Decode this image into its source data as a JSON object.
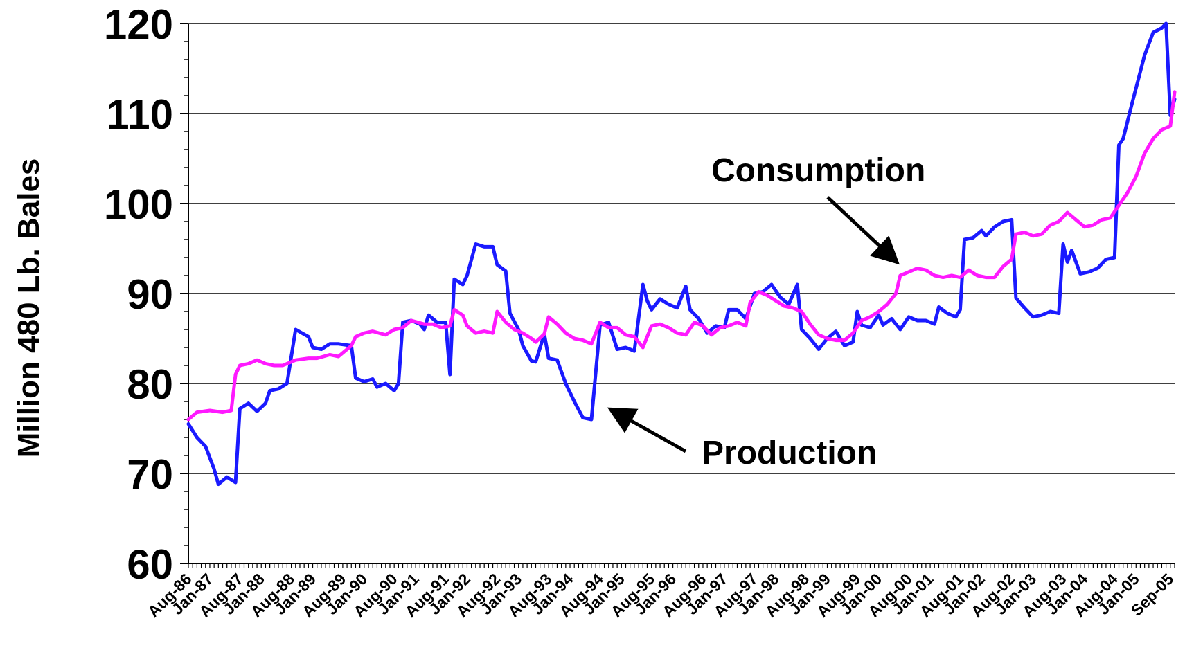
{
  "chart_data": {
    "type": "line",
    "title": "",
    "xlabel": "",
    "ylabel": "Million 480 Lb. Bales",
    "ylim": [
      60,
      120
    ],
    "yticks": [
      60,
      70,
      80,
      90,
      100,
      110,
      120
    ],
    "grid": true,
    "legend": "none",
    "x_start": "Aug-86",
    "x_end": "Sep-05",
    "x_tick_labels": [
      "Aug-86",
      "Jan-87",
      "Aug-87",
      "Jan-88",
      "Aug-88",
      "Jan-89",
      "Aug-89",
      "Jan-90",
      "Aug-90",
      "Jan-91",
      "Aug-91",
      "Jan-92",
      "Aug-92",
      "Jan-93",
      "Aug-93",
      "Jan-94",
      "Aug-94",
      "Jan-95",
      "Aug-95",
      "Jan-96",
      "Aug-96",
      "Jan-97",
      "Aug-97",
      "Jan-98",
      "Aug-98",
      "Jan-99",
      "Aug-99",
      "Jan-00",
      "Aug-00",
      "Jan-01",
      "Aug-01",
      "Jan-02",
      "Aug-02",
      "Jan-03",
      "Aug-03",
      "Jan-04",
      "Aug-04",
      "Jan-05",
      "Sep-05"
    ],
    "series": [
      {
        "name": "Production",
        "color": "#1a1aff",
        "points": [
          [
            "Aug-86",
            75.5
          ],
          [
            "Oct-86",
            74
          ],
          [
            "Dec-86",
            73
          ],
          [
            "Feb-87",
            70.5
          ],
          [
            "Mar-87",
            68.8
          ],
          [
            "May-87",
            69.6
          ],
          [
            "Jul-87",
            69
          ],
          [
            "Aug-87",
            77.2
          ],
          [
            "Oct-87",
            77.8
          ],
          [
            "Dec-87",
            76.9
          ],
          [
            "Feb-88",
            77.8
          ],
          [
            "Mar-88",
            79.2
          ],
          [
            "May-88",
            79.4
          ],
          [
            "Jul-88",
            80
          ],
          [
            "Sep-88",
            86
          ],
          [
            "Dec-88",
            85.2
          ],
          [
            "Jan-89",
            84
          ],
          [
            "Mar-89",
            83.8
          ],
          [
            "May-89",
            84.4
          ],
          [
            "Jul-89",
            84.4
          ],
          [
            "Oct-89",
            84.2
          ],
          [
            "Nov-89",
            80.6
          ],
          [
            "Jan-90",
            80.2
          ],
          [
            "Mar-90",
            80.5
          ],
          [
            "Apr-90",
            79.6
          ],
          [
            "Jun-90",
            80
          ],
          [
            "Aug-90",
            79.2
          ],
          [
            "Sep-90",
            80
          ],
          [
            "Oct-90",
            86.8
          ],
          [
            "Dec-90",
            87
          ],
          [
            "Feb-91",
            86.6
          ],
          [
            "Mar-91",
            86
          ],
          [
            "Apr-91",
            87.6
          ],
          [
            "Jun-91",
            86.8
          ],
          [
            "Aug-91",
            86.8
          ],
          [
            "Sep-91",
            81
          ],
          [
            "Oct-91",
            91.6
          ],
          [
            "Dec-91",
            91
          ],
          [
            "Jan-92",
            92
          ],
          [
            "Mar-92",
            95.5
          ],
          [
            "May-92",
            95.2
          ],
          [
            "Jul-92",
            95.2
          ],
          [
            "Aug-92",
            93.2
          ],
          [
            "Oct-92",
            92.5
          ],
          [
            "Nov-92",
            87.8
          ],
          [
            "Jan-93",
            86
          ],
          [
            "Feb-93",
            84.2
          ],
          [
            "Apr-93",
            82.5
          ],
          [
            "May-93",
            82.4
          ],
          [
            "Jul-93",
            85.5
          ],
          [
            "Aug-93",
            82.8
          ],
          [
            "Oct-93",
            82.6
          ],
          [
            "Dec-93",
            80
          ],
          [
            "Feb-94",
            78
          ],
          [
            "Apr-94",
            76.2
          ],
          [
            "Jun-94",
            76
          ],
          [
            "Aug-94",
            86.5
          ],
          [
            "Oct-94",
            86.8
          ],
          [
            "Dec-94",
            83.8
          ],
          [
            "Feb-95",
            84
          ],
          [
            "Apr-95",
            83.6
          ],
          [
            "Jun-95",
            91
          ],
          [
            "Jul-95",
            89.2
          ],
          [
            "Aug-95",
            88.2
          ],
          [
            "Oct-95",
            89.4
          ],
          [
            "Dec-95",
            88.8
          ],
          [
            "Feb-96",
            88.4
          ],
          [
            "Apr-96",
            90.8
          ],
          [
            "May-96",
            88.2
          ],
          [
            "Jul-96",
            87.2
          ],
          [
            "Sep-96",
            85.6
          ],
          [
            "Nov-96",
            86.4
          ],
          [
            "Jan-97",
            86.2
          ],
          [
            "Feb-97",
            88.2
          ],
          [
            "Apr-97",
            88.2
          ],
          [
            "Jun-97",
            87.2
          ],
          [
            "Aug-97",
            90
          ],
          [
            "Oct-97",
            90.2
          ],
          [
            "Dec-97",
            91
          ],
          [
            "Feb-98",
            89.6
          ],
          [
            "Apr-98",
            88.8
          ],
          [
            "Jun-98",
            91
          ],
          [
            "Jul-98",
            86
          ],
          [
            "Sep-98",
            85
          ],
          [
            "Nov-98",
            83.8
          ],
          [
            "Jan-99",
            85
          ],
          [
            "Mar-99",
            85.8
          ],
          [
            "May-99",
            84.2
          ],
          [
            "Jul-99",
            84.6
          ],
          [
            "Aug-99",
            88
          ],
          [
            "Sep-99",
            86.5
          ],
          [
            "Nov-99",
            86.2
          ],
          [
            "Jan-00",
            87.6
          ],
          [
            "Feb-00",
            86.5
          ],
          [
            "Apr-00",
            87.2
          ],
          [
            "Jun-00",
            86
          ],
          [
            "Aug-00",
            87.4
          ],
          [
            "Oct-00",
            87
          ],
          [
            "Dec-00",
            87
          ],
          [
            "Feb-01",
            86.6
          ],
          [
            "Mar-01",
            88.5
          ],
          [
            "May-01",
            87.8
          ],
          [
            "Jul-01",
            87.4
          ],
          [
            "Aug-01",
            88.2
          ],
          [
            "Sep-01",
            96
          ],
          [
            "Nov-01",
            96.2
          ],
          [
            "Jan-02",
            97
          ],
          [
            "Feb-02",
            96.4
          ],
          [
            "Apr-02",
            97.4
          ],
          [
            "Jun-02",
            98
          ],
          [
            "Aug-02",
            98.2
          ],
          [
            "Sep-02",
            89.5
          ],
          [
            "Nov-02",
            88.4
          ],
          [
            "Jan-03",
            87.4
          ],
          [
            "Mar-03",
            87.6
          ],
          [
            "May-03",
            88
          ],
          [
            "Jul-03",
            87.8
          ],
          [
            "Aug-03",
            95.5
          ],
          [
            "Sep-03",
            93.5
          ],
          [
            "Oct-03",
            94.8
          ],
          [
            "Dec-03",
            92.2
          ],
          [
            "Feb-04",
            92.4
          ],
          [
            "Apr-04",
            92.8
          ],
          [
            "Jun-04",
            93.8
          ],
          [
            "Aug-04",
            94
          ],
          [
            "Sep-04",
            106.5
          ],
          [
            "Oct-04",
            107.2
          ],
          [
            "Dec-04",
            111
          ],
          [
            "Mar-05",
            116.5
          ],
          [
            "May-05",
            119
          ],
          [
            "Jul-05",
            119.5
          ],
          [
            "Aug-05",
            120
          ],
          [
            "Sep-05",
            109.8
          ],
          [
            "Oct-05",
            111.6
          ]
        ]
      },
      {
        "name": "Consumption",
        "color": "#ff19ff",
        "points": [
          [
            "Aug-86",
            76
          ],
          [
            "Oct-86",
            76.8
          ],
          [
            "Jan-87",
            77
          ],
          [
            "Apr-87",
            76.8
          ],
          [
            "Jun-87",
            77
          ],
          [
            "Jul-87",
            81
          ],
          [
            "Aug-87",
            82
          ],
          [
            "Oct-87",
            82.2
          ],
          [
            "Dec-87",
            82.6
          ],
          [
            "Feb-88",
            82.2
          ],
          [
            "Apr-88",
            82
          ],
          [
            "Jun-88",
            82
          ],
          [
            "Sep-88",
            82.6
          ],
          [
            "Dec-88",
            82.8
          ],
          [
            "Feb-89",
            82.8
          ],
          [
            "May-89",
            83.2
          ],
          [
            "Jul-89",
            83
          ],
          [
            "Oct-89",
            84.2
          ],
          [
            "Nov-89",
            85.2
          ],
          [
            "Jan-90",
            85.6
          ],
          [
            "Mar-90",
            85.8
          ],
          [
            "Jun-90",
            85.4
          ],
          [
            "Aug-90",
            86
          ],
          [
            "Oct-90",
            86.2
          ],
          [
            "Dec-90",
            87
          ],
          [
            "Mar-91",
            86.6
          ],
          [
            "May-91",
            86.6
          ],
          [
            "Jul-91",
            86.2
          ],
          [
            "Sep-91",
            86.4
          ],
          [
            "Oct-91",
            88.2
          ],
          [
            "Dec-91",
            87.6
          ],
          [
            "Jan-92",
            86.4
          ],
          [
            "Mar-92",
            85.6
          ],
          [
            "May-92",
            85.8
          ],
          [
            "Jul-92",
            85.6
          ],
          [
            "Aug-92",
            88
          ],
          [
            "Oct-92",
            86.8
          ],
          [
            "Dec-92",
            86
          ],
          [
            "Feb-93",
            85.6
          ],
          [
            "Apr-93",
            85
          ],
          [
            "May-93",
            84.6
          ],
          [
            "Jul-93",
            85.5
          ],
          [
            "Aug-93",
            87.4
          ],
          [
            "Oct-93",
            86.6
          ],
          [
            "Dec-93",
            85.6
          ],
          [
            "Feb-94",
            85
          ],
          [
            "Apr-94",
            84.8
          ],
          [
            "Jun-94",
            84.4
          ],
          [
            "Aug-94",
            86.8
          ],
          [
            "Oct-94",
            86.2
          ],
          [
            "Dec-94",
            86.2
          ],
          [
            "Feb-95",
            85.4
          ],
          [
            "Apr-95",
            85.2
          ],
          [
            "Jun-95",
            84
          ],
          [
            "Aug-95",
            86.4
          ],
          [
            "Oct-95",
            86.6
          ],
          [
            "Dec-95",
            86.2
          ],
          [
            "Feb-96",
            85.6
          ],
          [
            "Apr-96",
            85.4
          ],
          [
            "Jun-96",
            86.8
          ],
          [
            "Aug-96",
            86.4
          ],
          [
            "Oct-96",
            85.4
          ],
          [
            "Dec-96",
            86.2
          ],
          [
            "Feb-97",
            86.4
          ],
          [
            "Apr-97",
            86.8
          ],
          [
            "Jun-97",
            86.4
          ],
          [
            "Jul-97",
            89
          ],
          [
            "Sep-97",
            90.2
          ],
          [
            "Nov-97",
            89.8
          ],
          [
            "Jan-98",
            89.2
          ],
          [
            "Mar-98",
            88.6
          ],
          [
            "May-98",
            88.4
          ],
          [
            "Jul-98",
            88
          ],
          [
            "Sep-98",
            86.6
          ],
          [
            "Nov-98",
            85.4
          ],
          [
            "Jan-99",
            85
          ],
          [
            "Mar-99",
            84.8
          ],
          [
            "May-99",
            84.8
          ],
          [
            "Jul-99",
            85.6
          ],
          [
            "Sep-99",
            87
          ],
          [
            "Nov-99",
            87.4
          ],
          [
            "Jan-00",
            88
          ],
          [
            "Mar-00",
            88.8
          ],
          [
            "May-00",
            90
          ],
          [
            "Jun-00",
            92
          ],
          [
            "Aug-00",
            92.4
          ],
          [
            "Oct-00",
            92.8
          ],
          [
            "Dec-00",
            92.6
          ],
          [
            "Feb-01",
            92
          ],
          [
            "Apr-01",
            91.8
          ],
          [
            "Jun-01",
            92
          ],
          [
            "Aug-01",
            91.8
          ],
          [
            "Oct-01",
            92.6
          ],
          [
            "Dec-01",
            92
          ],
          [
            "Feb-02",
            91.8
          ],
          [
            "Apr-02",
            91.8
          ],
          [
            "Jun-02",
            93
          ],
          [
            "Aug-02",
            93.8
          ],
          [
            "Sep-02",
            96.6
          ],
          [
            "Nov-02",
            96.8
          ],
          [
            "Jan-03",
            96.4
          ],
          [
            "Mar-03",
            96.6
          ],
          [
            "May-03",
            97.6
          ],
          [
            "Jul-03",
            98
          ],
          [
            "Sep-03",
            99
          ],
          [
            "Nov-03",
            98.2
          ],
          [
            "Jan-04",
            97.4
          ],
          [
            "Mar-04",
            97.6
          ],
          [
            "May-04",
            98.2
          ],
          [
            "Jul-04",
            98.4
          ],
          [
            "Sep-04",
            99.8
          ],
          [
            "Nov-04",
            101.2
          ],
          [
            "Jan-05",
            103
          ],
          [
            "Mar-05",
            105.6
          ],
          [
            "May-05",
            107.2
          ],
          [
            "Jul-05",
            108.2
          ],
          [
            "Sep-05",
            108.6
          ],
          [
            "Oct-05",
            112.4
          ]
        ]
      }
    ],
    "annotations": [
      {
        "text": "Consumption",
        "target_series": "Consumption"
      },
      {
        "text": "Production",
        "target_series": "Production"
      }
    ]
  }
}
